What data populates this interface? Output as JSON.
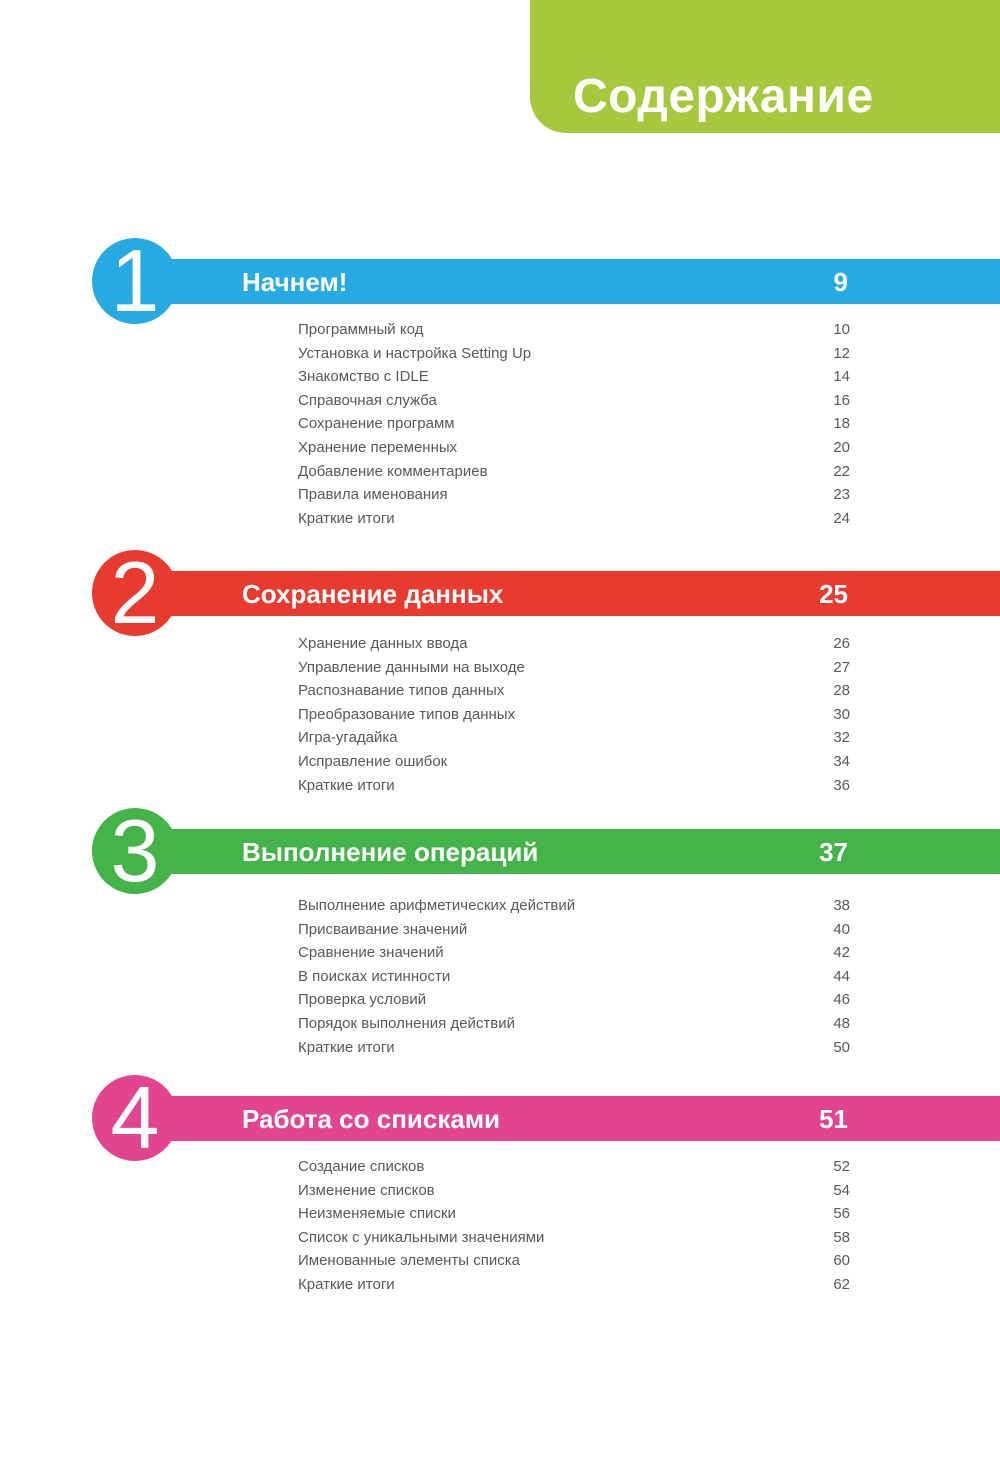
{
  "header": {
    "title": "Содержание",
    "color": "#a5c83d"
  },
  "chapters": [
    {
      "number": "1",
      "title": "Начнем!",
      "page": "9",
      "color": "#27aae1",
      "entries": [
        {
          "label": "Программный код",
          "page": "10"
        },
        {
          "label": "Установка и настройка Setting Up",
          "page": "12"
        },
        {
          "label": "Знакомство с IDLE",
          "page": "14"
        },
        {
          "label": "Справочная служба",
          "page": "16"
        },
        {
          "label": "Сохранение программ",
          "page": "18"
        },
        {
          "label": "Хранение переменных",
          "page": "20"
        },
        {
          "label": "Добавление комментариев",
          "page": "22"
        },
        {
          "label": "Правила именования",
          "page": "23"
        },
        {
          "label": "Краткие итоги",
          "page": "24"
        }
      ]
    },
    {
      "number": "2",
      "title": "Сохранение данных",
      "page": "25",
      "color": "#e73b2f",
      "entries": [
        {
          "label": "Хранение данных ввода",
          "page": "26"
        },
        {
          "label": "Управление данными на выходе",
          "page": "27"
        },
        {
          "label": "Распознавание типов данных",
          "page": "28"
        },
        {
          "label": "Преобразование типов данных",
          "page": "30"
        },
        {
          "label": "Игра-угадайка",
          "page": "32"
        },
        {
          "label": "Исправление ошибок",
          "page": "34"
        },
        {
          "label": "Краткие итоги",
          "page": "36"
        }
      ]
    },
    {
      "number": "3",
      "title": "Выполнение операций",
      "page": "37",
      "color": "#44b349",
      "entries": [
        {
          "label": "Выполнение арифметических действий",
          "page": "38"
        },
        {
          "label": "Присваивание значений",
          "page": "40"
        },
        {
          "label": "Сравнение значений",
          "page": "42"
        },
        {
          "label": "В поисках истинности",
          "page": "44"
        },
        {
          "label": "Проверка условий",
          "page": "46"
        },
        {
          "label": "Порядок выполнения действий",
          "page": "48"
        },
        {
          "label": "Краткие итоги",
          "page": "50"
        }
      ]
    },
    {
      "number": "4",
      "title": "Работа со списками",
      "page": "51",
      "color": "#e2458f",
      "entries": [
        {
          "label": "Создание списков",
          "page": "52"
        },
        {
          "label": "Изменение списков",
          "page": "54"
        },
        {
          "label": "Неизменяемые списки",
          "page": "56"
        },
        {
          "label": "Список с уникальными значениями",
          "page": "58"
        },
        {
          "label": "Именованные элементы списка",
          "page": "60"
        },
        {
          "label": "Краткие итоги",
          "page": "62"
        }
      ]
    }
  ]
}
